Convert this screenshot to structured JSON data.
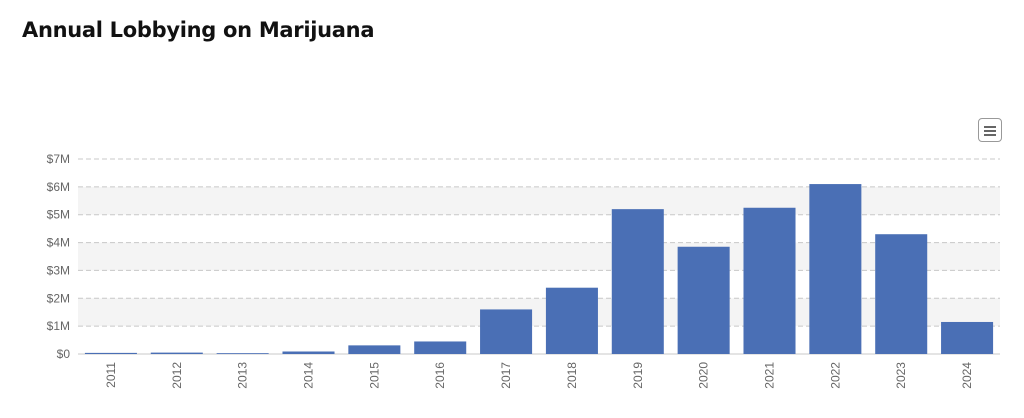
{
  "page": {
    "title": "Annual Lobbying on Marijuana"
  },
  "menu": {
    "icon": "hamburger-menu-icon"
  },
  "chart_data": {
    "type": "bar",
    "title": "Annual Lobbying on Marijuana",
    "xlabel": "",
    "ylabel": "",
    "categories": [
      "2011",
      "2012",
      "2013",
      "2014",
      "2015",
      "2016",
      "2017",
      "2018",
      "2019",
      "2020",
      "2021",
      "2022",
      "2023",
      "2024"
    ],
    "values": [
      40000,
      50000,
      30000,
      90000,
      310000,
      450000,
      1600000,
      2380000,
      5200000,
      3850000,
      5250000,
      6100000,
      4300000,
      1150000
    ],
    "ylim": [
      0,
      7000000
    ],
    "yticks": [
      0,
      1000000,
      2000000,
      3000000,
      4000000,
      5000000,
      6000000,
      7000000
    ],
    "ytick_labels": [
      "$0",
      "$1M",
      "$2M",
      "$3M",
      "$4M",
      "$5M",
      "$6M",
      "$7M"
    ],
    "bar_color": "#4a6fb5",
    "band_color": "#f4f4f4",
    "grid": true,
    "legend": "none"
  }
}
